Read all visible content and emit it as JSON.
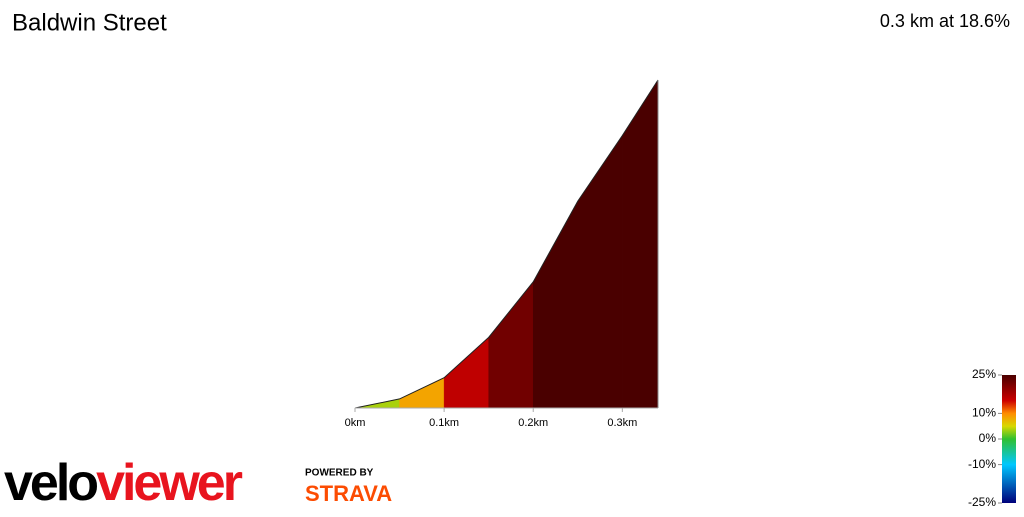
{
  "chart_data": {
    "type": "area",
    "title": "Baldwin Street",
    "subtitle": "0.3 km at 18.6%",
    "x": [
      0,
      0.05,
      0.1,
      0.15,
      0.2,
      0.25,
      0.3,
      0.34
    ],
    "values": [
      0,
      1.8,
      6,
      14,
      25,
      41,
      54,
      65
    ],
    "xlim": [
      0,
      0.34
    ],
    "ylim": [
      0,
      65
    ],
    "xticks": [
      {
        "value": 0,
        "label": "0km"
      },
      {
        "value": 0.1,
        "label": "0.1km"
      },
      {
        "value": 0.2,
        "label": "0.2km"
      },
      {
        "value": 0.3,
        "label": "0.3km"
      }
    ],
    "colorscale": [
      {
        "value": -25,
        "color": "#00007a"
      },
      {
        "value": -10,
        "color": "#00c8ff"
      },
      {
        "value": 0,
        "color": "#30c030"
      },
      {
        "value": 5,
        "color": "#d8d800"
      },
      {
        "value": 10,
        "color": "#ff8c00"
      },
      {
        "value": 15,
        "color": "#cc0000"
      },
      {
        "value": 25,
        "color": "#4a0000"
      }
    ],
    "colorbar_lim": [
      -25,
      25
    ],
    "colorbar_ticks": [
      {
        "value": 25,
        "label": "25%"
      },
      {
        "value": 10,
        "label": "10%"
      },
      {
        "value": 0,
        "label": "0%"
      },
      {
        "value": -10,
        "label": "-10%"
      },
      {
        "value": -25,
        "label": "-25%"
      }
    ]
  },
  "branding": {
    "logo_left": "velo",
    "logo_right": "viewer",
    "powered": "POWERED BY",
    "partner": "STRAVA"
  }
}
